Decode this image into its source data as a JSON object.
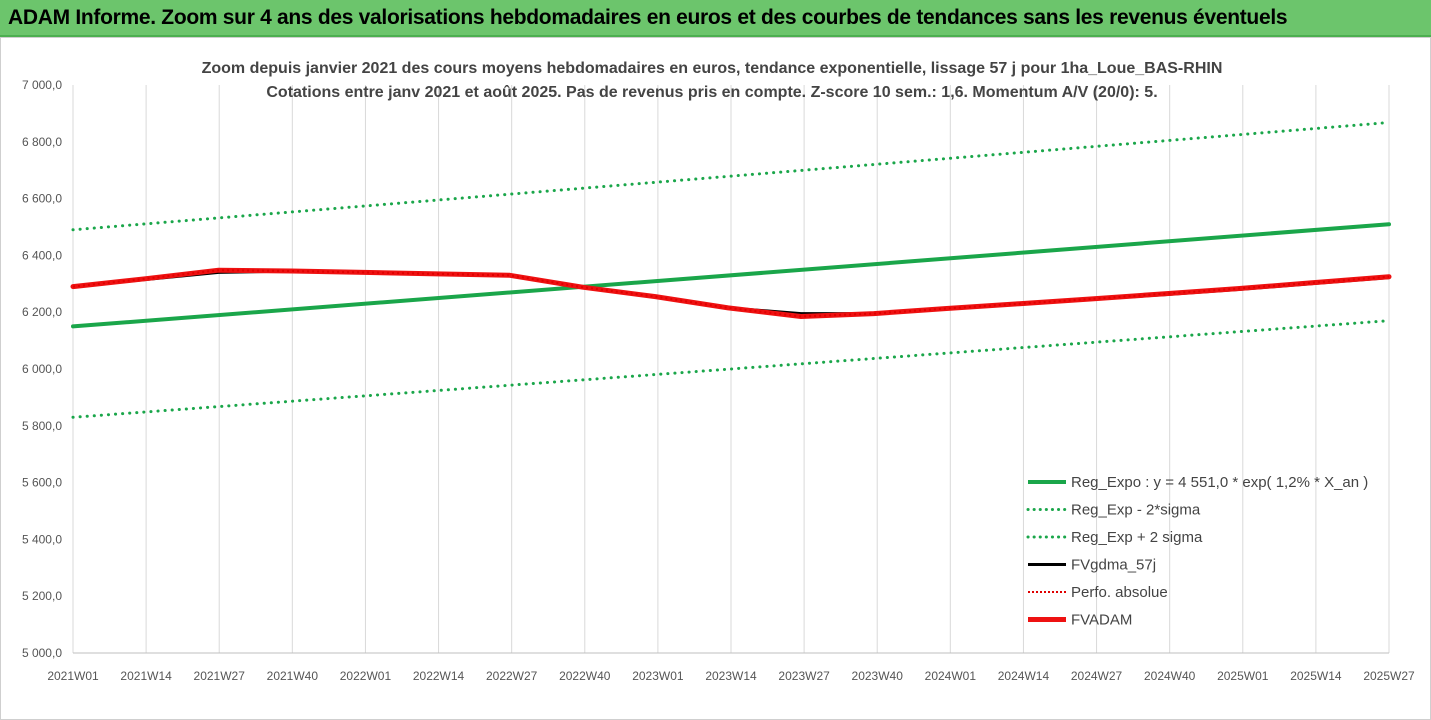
{
  "header": {
    "title": "ADAM Informe. Zoom sur 4 ans des valorisations hebdomadaires en euros et des courbes de tendances sans les revenus éventuels"
  },
  "chart_data": {
    "type": "line",
    "title_lines": [
      "Zoom depuis janvier 2021 des cours moyens hebdomadaires en euros, tendance exponentielle, lissage 57 j pour 1ha_Loue_BAS-RHIN",
      "Cotations entre janv 2021 et août 2025.  Pas de revenus pris en compte. Z-score 10 sem.: 1,6. Momentum A/V (20/0): 5."
    ],
    "ylim": [
      5000,
      7000
    ],
    "y_ticks": [
      "7 000,0",
      "6 800,0",
      "6 600,0",
      "6 400,0",
      "6 200,0",
      "6 000,0",
      "5 800,0",
      "5 600,0",
      "5 400,0",
      "5 200,0",
      "5 000,0"
    ],
    "x_ticks": [
      "2021W01",
      "2021W14",
      "2021W27",
      "2021W40",
      "2022W01",
      "2022W14",
      "2022W27",
      "2022W40",
      "2023W01",
      "2023W14",
      "2023W27",
      "2023W40",
      "2024W01",
      "2024W14",
      "2024W27",
      "2024W40",
      "2025W01",
      "2025W14",
      "2025W27"
    ],
    "x_last_index": 235,
    "grid": "vertical",
    "legend_position": "bottom-right",
    "series": [
      {
        "name": "Reg_Expo : y = 4 551,0 * exp( 1,2% *  X_an )",
        "style": "solid",
        "color": "#1aa64a",
        "width": 4,
        "points": [
          [
            0,
            6150
          ],
          [
            235,
            6510
          ]
        ]
      },
      {
        "name": "Reg_Exp - 2*sigma",
        "style": "dotted",
        "color": "#1aa64a",
        "width": 3,
        "points": [
          [
            0,
            5830
          ],
          [
            235,
            6170
          ]
        ]
      },
      {
        "name": "Reg_Exp + 2 sigma",
        "style": "dotted",
        "color": "#1aa64a",
        "width": 3,
        "points": [
          [
            0,
            6490
          ],
          [
            235,
            6868
          ]
        ]
      },
      {
        "name": "FVgdma_57j",
        "style": "solid",
        "color": "#000000",
        "width": 3,
        "points": [
          [
            0,
            6290
          ],
          [
            13,
            6315
          ],
          [
            26,
            6340
          ],
          [
            39,
            6345
          ],
          [
            52,
            6340
          ],
          [
            65,
            6335
          ],
          [
            78,
            6330
          ],
          [
            91,
            6290
          ],
          [
            104,
            6255
          ],
          [
            117,
            6215
          ],
          [
            130,
            6195
          ],
          [
            143,
            6195
          ],
          [
            156,
            6213
          ],
          [
            169,
            6230
          ],
          [
            182,
            6245
          ],
          [
            195,
            6262
          ],
          [
            208,
            6280
          ],
          [
            221,
            6300
          ],
          [
            235,
            6322
          ]
        ]
      },
      {
        "name": "Perfo. absolue",
        "style": "dotted",
        "color": "#e00000",
        "width": 2,
        "points": [
          [
            0,
            6290
          ],
          [
            13,
            6318
          ],
          [
            26,
            6348
          ],
          [
            39,
            6345
          ],
          [
            52,
            6340
          ],
          [
            65,
            6335
          ],
          [
            78,
            6330
          ],
          [
            91,
            6288
          ],
          [
            104,
            6255
          ],
          [
            117,
            6215
          ],
          [
            130,
            6185
          ],
          [
            143,
            6195
          ],
          [
            156,
            6213
          ],
          [
            169,
            6230
          ],
          [
            182,
            6247
          ],
          [
            195,
            6265
          ],
          [
            208,
            6283
          ],
          [
            221,
            6303
          ],
          [
            235,
            6325
          ]
        ]
      },
      {
        "name": "FVADAM",
        "style": "solid",
        "color": "#ee1111",
        "width": 5,
        "points": [
          [
            0,
            6290
          ],
          [
            13,
            6318
          ],
          [
            26,
            6348
          ],
          [
            39,
            6345
          ],
          [
            52,
            6340
          ],
          [
            65,
            6335
          ],
          [
            78,
            6330
          ],
          [
            91,
            6288
          ],
          [
            104,
            6255
          ],
          [
            117,
            6215
          ],
          [
            130,
            6185
          ],
          [
            143,
            6195
          ],
          [
            156,
            6213
          ],
          [
            169,
            6230
          ],
          [
            182,
            6247
          ],
          [
            195,
            6265
          ],
          [
            208,
            6283
          ],
          [
            221,
            6303
          ],
          [
            235,
            6325
          ]
        ]
      }
    ]
  }
}
